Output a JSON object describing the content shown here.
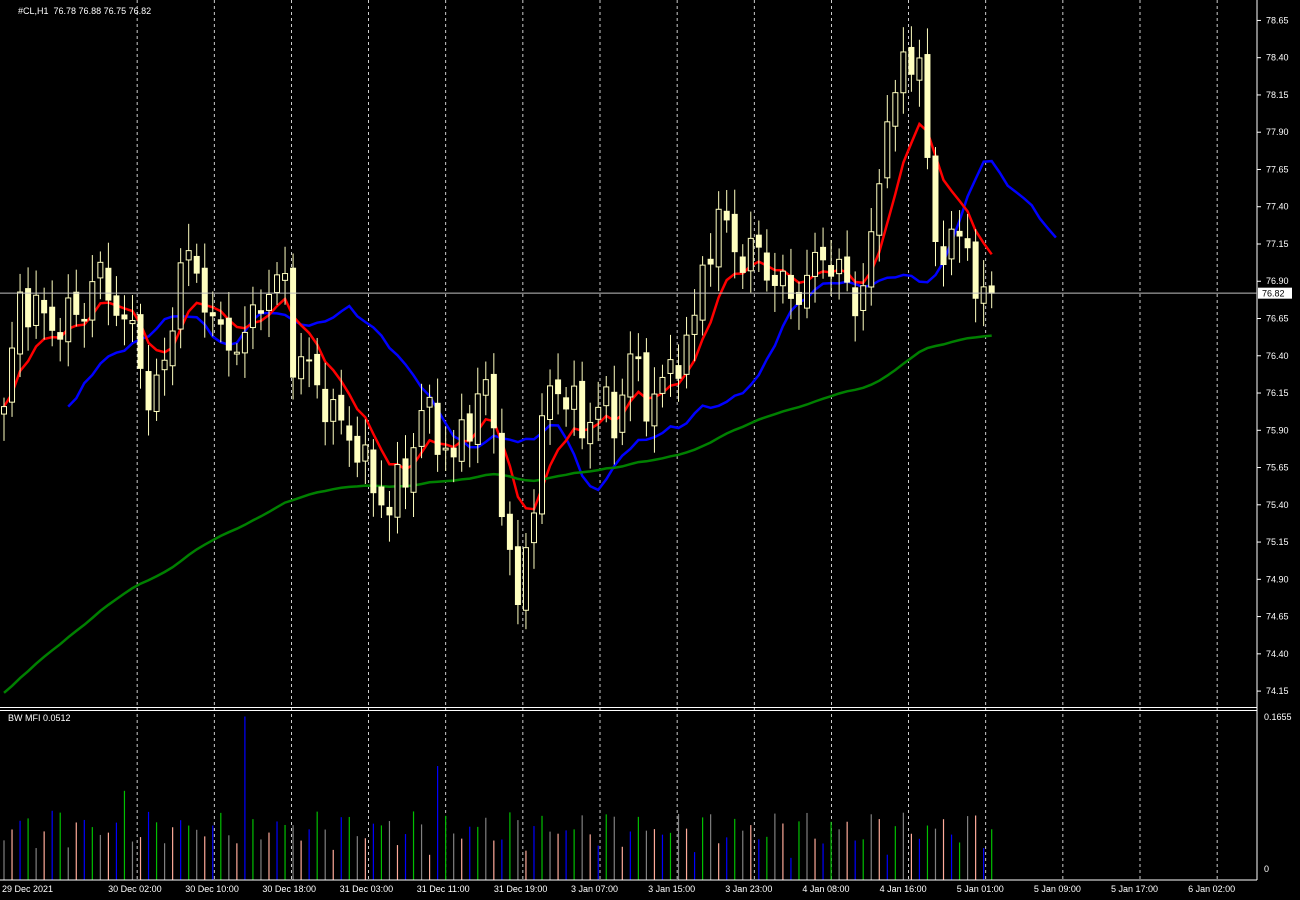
{
  "header": {
    "symbol_label": "#CL,H1",
    "ohlc_label": "76.78 76.88 76.75 76.82"
  },
  "indicator": {
    "label": "BW MFI 0.0512"
  },
  "colors": {
    "background": "#000000",
    "candle": "#ffffc0",
    "ma_fast": "#0000ff",
    "ma_mid": "#ff0000",
    "ma_slow": "#008000",
    "price_line": "#c0c0c0",
    "mfi_green": "#00c000",
    "mfi_blue": "#0000ff",
    "mfi_pink": "#ffaa99",
    "mfi_grey": "#808080"
  },
  "chart_data": [
    {
      "type": "candlestick",
      "timeframe": "H1",
      "ylim": [
        74.05,
        78.72
      ],
      "y_ticks": [
        "78.65",
        "78.40",
        "78.15",
        "77.90",
        "77.65",
        "77.40",
        "77.15",
        "76.90",
        "76.65",
        "76.40",
        "76.15",
        "75.90",
        "75.65",
        "75.40",
        "75.15",
        "74.90",
        "74.65",
        "74.40",
        "74.15"
      ],
      "current_price": "76.82",
      "x_tick_labels": [
        "29 Dec 2021",
        "30 Dec 02:00",
        "30 Dec 10:00",
        "30 Dec 18:00",
        "31 Dec 03:00",
        "31 Dec 11:00",
        "31 Dec 19:00",
        "3 Jan 07:00",
        "3 Jan 15:00",
        "3 Jan 23:00",
        "4 Jan 08:00",
        "4 Jan 16:00",
        "5 Jan 01:00",
        "5 Jan 09:00",
        "5 Jan 17:00",
        "6 Jan 02:00"
      ],
      "bar_count": 124,
      "anchors": [
        [
          0,
          76.0
        ],
        [
          2,
          76.8
        ],
        [
          6,
          76.6
        ],
        [
          10,
          76.7
        ],
        [
          11,
          76.95
        ],
        [
          14,
          76.75
        ],
        [
          17,
          76.4
        ],
        [
          18,
          76.1
        ],
        [
          20,
          76.3
        ],
        [
          22,
          77.05
        ],
        [
          24,
          76.95
        ],
        [
          27,
          76.5
        ],
        [
          30,
          76.5
        ],
        [
          32,
          76.8
        ],
        [
          35,
          76.9
        ],
        [
          36,
          76.4
        ],
        [
          38,
          76.3
        ],
        [
          41,
          76.0
        ],
        [
          44,
          75.8
        ],
        [
          46,
          75.5
        ],
        [
          48,
          75.4
        ],
        [
          50,
          75.6
        ],
        [
          52,
          76.05
        ],
        [
          56,
          75.7
        ],
        [
          58,
          76.0
        ],
        [
          60,
          76.2
        ],
        [
          62,
          75.5
        ],
        [
          63,
          75.0
        ],
        [
          64,
          74.7
        ],
        [
          66,
          75.5
        ],
        [
          68,
          76.2
        ],
        [
          70,
          76.15
        ],
        [
          72,
          75.9
        ],
        [
          74,
          76.1
        ],
        [
          76,
          75.95
        ],
        [
          78,
          76.4
        ],
        [
          80,
          76.1
        ],
        [
          82,
          76.2
        ],
        [
          84,
          76.4
        ],
        [
          86,
          76.6
        ],
        [
          87,
          77.0
        ],
        [
          89,
          77.3
        ],
        [
          90,
          77.25
        ],
        [
          92,
          77.05
        ],
        [
          94,
          77.1
        ],
        [
          96,
          76.9
        ],
        [
          98,
          76.8
        ],
        [
          100,
          76.9
        ],
        [
          102,
          77.1
        ],
        [
          104,
          76.95
        ],
        [
          106,
          76.75
        ],
        [
          108,
          77.1
        ],
        [
          110,
          78.05
        ],
        [
          112,
          78.3
        ],
        [
          114,
          78.45
        ],
        [
          115,
          77.7
        ],
        [
          116,
          77.05
        ],
        [
          118,
          77.25
        ],
        [
          120,
          77.05
        ],
        [
          121,
          76.95
        ],
        [
          122,
          76.8
        ],
        [
          123,
          76.82
        ]
      ],
      "series": [
        {
          "name": "",
          "color": "#0000ff",
          "shift": 8,
          "period": 13
        },
        {
          "name": "",
          "color": "#ff0000",
          "shift": 0,
          "period": 8
        },
        {
          "name": "",
          "color": "#008000",
          "shift": 0,
          "period": 100
        }
      ]
    },
    {
      "type": "bar",
      "title": "BW MFI 0.0512",
      "ylim": [
        0,
        0.1655
      ],
      "y_ticks": [
        "0.1655",
        "0"
      ],
      "current_value": 0.0512
    }
  ]
}
